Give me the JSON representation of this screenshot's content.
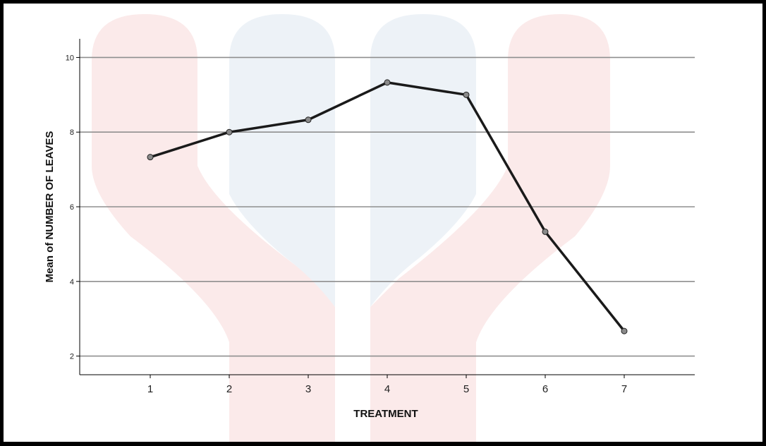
{
  "chart_data": {
    "type": "line",
    "title": "",
    "xlabel": "TREATMENT",
    "ylabel": "Mean of NUMBER OF LEAVES",
    "categories": [
      "1",
      "2",
      "3",
      "4",
      "5",
      "6",
      "7"
    ],
    "series": [
      {
        "values": [
          7.33,
          8.0,
          8.33,
          9.33,
          9.0,
          5.33,
          2.67
        ]
      }
    ],
    "ylim": [
      1.5,
      10.5
    ],
    "yticks": [
      "2",
      "4",
      "6",
      "8",
      "10"
    ],
    "grid": "horizontal",
    "legend": "none",
    "colors": {
      "line": "#1a1a1a",
      "marker_fill": "#8a8a8a",
      "gridline": "#8f8f8f",
      "watermark_red": "#fde8e8",
      "watermark_blue": "#e8f0f7",
      "frame": "#000000"
    }
  }
}
